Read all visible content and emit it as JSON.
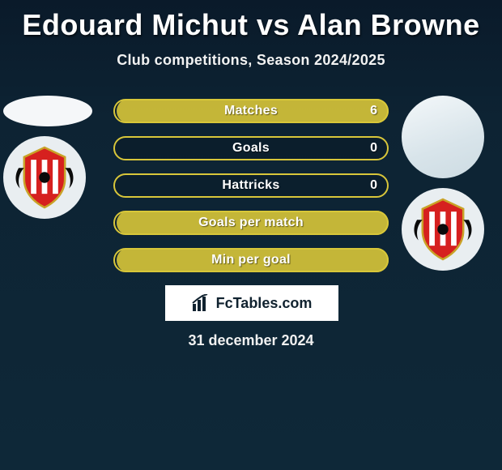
{
  "title": "Edouard Michut vs Alan Browne",
  "subtitle": "Club competitions, Season 2024/2025",
  "date": "31 december 2024",
  "branding": "FcTables.com",
  "colors": {
    "title": "#ffffff",
    "body_bg_top": "#0a1a2a",
    "body_bg_bottom": "#0e2838",
    "stat_border": "#d8c63a",
    "stat_fill": "#d8c63a",
    "crest_red": "#d6201f",
    "crest_black": "#0b0b0b",
    "crest_gold": "#c9a227"
  },
  "stats": [
    {
      "label": "Matches",
      "value_right": "6",
      "fill_right_pct": 100
    },
    {
      "label": "Goals",
      "value_right": "0",
      "fill_right_pct": 0
    },
    {
      "label": "Hattricks",
      "value_right": "0",
      "fill_right_pct": 0
    },
    {
      "label": "Goals per match",
      "value_right": "",
      "fill_right_pct": 100
    },
    {
      "label": "Min per goal",
      "value_right": "",
      "fill_right_pct": 100
    }
  ]
}
